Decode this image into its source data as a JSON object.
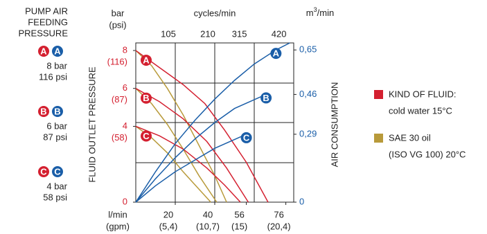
{
  "chart_data": {
    "type": "line",
    "pressure_key": {
      "title": [
        "PUMP AIR",
        "FEEDING",
        "PRESSURE"
      ],
      "items": [
        {
          "letter": "A",
          "bar": "8 bar",
          "psi": "116 psi"
        },
        {
          "letter": "B",
          "bar": "6 bar",
          "psi": "87 psi"
        },
        {
          "letter": "C",
          "bar": "4 bar",
          "psi": "58 psi"
        }
      ]
    },
    "y_unit": [
      "bar",
      "(psi)"
    ],
    "x2_unit": "cycles/min",
    "y2_unit": {
      "base": "m",
      "sup": "3",
      "rest": "/min"
    },
    "y_label": "FLUID OUTLET PRESSURE",
    "y2_label": "AIR CONSUMPTION",
    "x_unit": [
      "l/min",
      "(gpm)"
    ],
    "xlim": [
      0,
      80
    ],
    "xticks": [
      20,
      40,
      56,
      76
    ],
    "x_gpm_labels": [
      "(5,4)",
      "(10,7)",
      "(15)",
      "(20,4)"
    ],
    "x2_labels": [
      "105",
      "210",
      "315",
      "420"
    ],
    "ylim": [
      0,
      8.4
    ],
    "yticks": [
      0,
      4,
      6,
      8
    ],
    "y_psi_labels": [
      null,
      "(58)",
      "(87)",
      "(116)"
    ],
    "y2lim": [
      0,
      0.68
    ],
    "y2ticks": [
      0,
      {
        "value": 0.29,
        "label": "0,29"
      },
      {
        "value": 0.46,
        "label": "0,46"
      },
      {
        "value": 0.65,
        "label": "0,65"
      }
    ],
    "fluids": [
      {
        "name": [
          "KIND OF FLUID:",
          "cold water 15°C"
        ],
        "color": "#d42030",
        "curves": [
          {
            "name": "A",
            "x": [
              0,
              12,
              24,
              35,
              45,
              56,
              67
            ],
            "values": [
              8,
              7.1,
              6.2,
              5.2,
              3.8,
              2.1,
              0
            ]
          },
          {
            "name": "B",
            "x": [
              0,
              12,
              24,
              36,
              46,
              57
            ],
            "values": [
              6,
              5.3,
              4.4,
              3.2,
              1.8,
              0
            ]
          },
          {
            "name": "C",
            "x": [
              0,
              12,
              24,
              36,
              45,
              53
            ],
            "values": [
              4,
              3.5,
              2.8,
              1.8,
              0.9,
              0
            ]
          }
        ]
      },
      {
        "name": [
          "SAE 30 oil",
          "(ISO VG 100) 20°C"
        ],
        "color": "#b89a3a",
        "curves": [
          {
            "name": "A",
            "x": [
              0,
              8,
              16,
              24,
              32,
              40,
              46
            ],
            "values": [
              8,
              7.2,
              6,
              4.6,
              3,
              1.4,
              0
            ]
          },
          {
            "name": "B",
            "x": [
              0,
              8,
              16,
              24,
              32,
              41
            ],
            "values": [
              6,
              5.2,
              4.1,
              2.8,
              1.4,
              0
            ]
          },
          {
            "name": "C",
            "x": [
              0,
              8,
              16,
              24,
              31,
              38
            ],
            "values": [
              4,
              3.4,
              2.6,
              1.6,
              0.8,
              0
            ]
          }
        ]
      }
    ],
    "air": {
      "color": "#1a5ea8",
      "axis": "y2",
      "curves": [
        {
          "name": "A",
          "x": [
            0,
            10,
            20,
            30,
            40,
            50,
            60,
            71,
            78
          ],
          "values": [
            0,
            0.13,
            0.25,
            0.35,
            0.44,
            0.52,
            0.59,
            0.65,
            0.68
          ]
        },
        {
          "name": "B",
          "x": [
            0,
            10,
            20,
            30,
            40,
            50,
            66
          ],
          "values": [
            0,
            0.1,
            0.19,
            0.27,
            0.34,
            0.4,
            0.46
          ]
        },
        {
          "name": "C",
          "x": [
            0,
            10,
            20,
            30,
            40,
            56
          ],
          "values": [
            0,
            0.07,
            0.13,
            0.18,
            0.23,
            0.29
          ]
        }
      ]
    }
  }
}
